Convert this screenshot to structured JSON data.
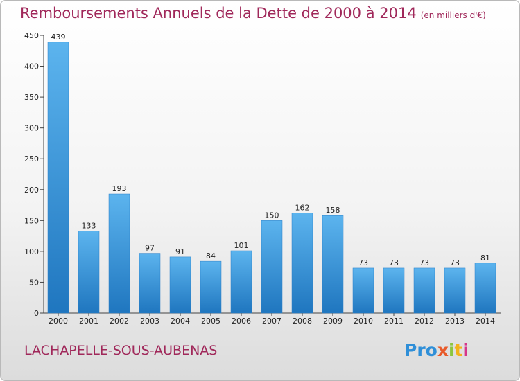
{
  "title": "Remboursements Annuels de la Dette de 2000 à 2014",
  "unit": "(en milliers d'€)",
  "city": "LACHAPELLE-SOUS-AUBENAS",
  "logo": [
    "Pro",
    "x",
    "i",
    "t",
    "i"
  ],
  "colors": {
    "title": "#a0285a",
    "bar_light": "#5cb4ee",
    "bar_dark": "#1f76bf"
  },
  "chart_data": {
    "type": "bar",
    "categories": [
      "2000",
      "2001",
      "2002",
      "2003",
      "2004",
      "2005",
      "2006",
      "2007",
      "2008",
      "2009",
      "2010",
      "2011",
      "2012",
      "2013",
      "2014"
    ],
    "values": [
      439,
      133,
      193,
      97,
      91,
      84,
      101,
      150,
      162,
      158,
      73,
      73,
      73,
      73,
      81
    ],
    "ylim": [
      0,
      450
    ],
    "yticks": [
      0,
      50,
      100,
      150,
      200,
      250,
      300,
      350,
      400,
      450
    ],
    "grid": false,
    "title": "Remboursements Annuels de la Dette de 2000 à 2014"
  }
}
